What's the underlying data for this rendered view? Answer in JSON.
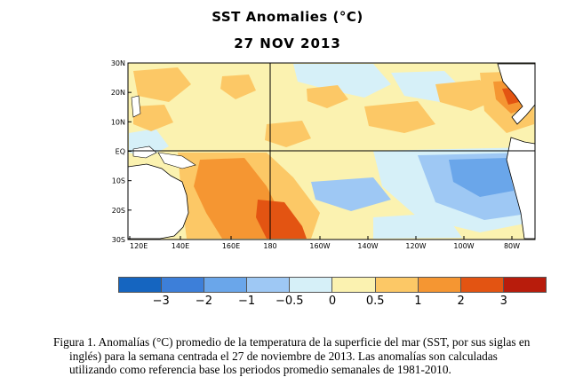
{
  "title": "SST Anomalies (°C)",
  "subtitle": "27 NOV 2013",
  "map": {
    "lat_ticks": [
      "30N",
      "20N",
      "10N",
      "EQ",
      "10S",
      "20S",
      "30S"
    ],
    "lon_ticks": [
      "120E",
      "140E",
      "160E",
      "180",
      "160W",
      "140W",
      "120W",
      "100W",
      "80W"
    ]
  },
  "colorbar": {
    "colors": [
      "#1565c0",
      "#3d7fd9",
      "#6aa6ea",
      "#9ec8f4",
      "#d6f0f8",
      "#fbf2b0",
      "#fcc866",
      "#f59632",
      "#e35412",
      "#b81c0c"
    ],
    "labels": [
      "−3",
      "−2",
      "−1",
      "−0.5",
      "0",
      "0.5",
      "1",
      "2",
      "3"
    ]
  },
  "caption": {
    "line1": "Figura 1. Anomalías (°C) promedio de la temperatura de la superficie del mar (SST, por sus siglas en",
    "line2": "inglés) para la semana centrada el 27 de noviembre de 2013.   Las anomalías son calculadas",
    "line3": "utilizando como referencia base los periodos promedio semanales de 1981-2010."
  }
}
